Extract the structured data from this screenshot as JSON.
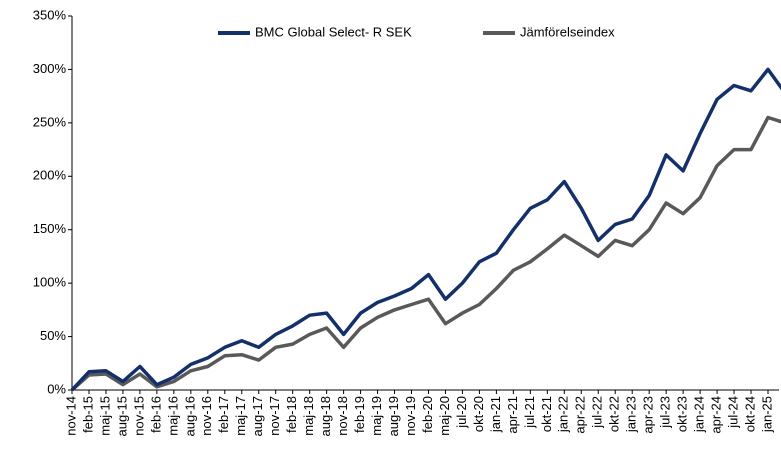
{
  "chart_data": {
    "type": "line",
    "categories": [
      "nov-14",
      "feb-15",
      "maj-15",
      "aug-15",
      "nov-15",
      "feb-16",
      "maj-16",
      "aug-16",
      "nov-16",
      "feb-17",
      "maj-17",
      "aug-17",
      "nov-17",
      "feb-18",
      "maj-18",
      "aug-18",
      "nov-18",
      "feb-19",
      "maj-19",
      "aug-19",
      "nov-19",
      "feb-20",
      "maj-20",
      "jul-20",
      "okt-20",
      "jan-21",
      "apr-21",
      "jul-21",
      "okt-21",
      "jan-22",
      "apr-22",
      "jul-22",
      "okt-22",
      "jan-23",
      "apr-23",
      "jul-23",
      "okt-23",
      "jan-24",
      "apr-24",
      "jul-24",
      "okt-24",
      "jan-25",
      null
    ],
    "series": [
      {
        "name": "BMC Global Select- R SEK",
        "color": "#14306b",
        "values": [
          0,
          17,
          18,
          8,
          22,
          5,
          12,
          24,
          30,
          40,
          46,
          40,
          52,
          60,
          70,
          72,
          52,
          72,
          82,
          88,
          95,
          108,
          85,
          100,
          120,
          128,
          150,
          170,
          178,
          195,
          170,
          140,
          155,
          160,
          182,
          220,
          205,
          240,
          272,
          285,
          280,
          300,
          278
        ]
      },
      {
        "name": "Jämförelseindex",
        "color": "#595959",
        "values": [
          0,
          14,
          15,
          5,
          15,
          3,
          8,
          18,
          22,
          32,
          33,
          28,
          40,
          43,
          52,
          58,
          40,
          58,
          68,
          75,
          80,
          85,
          62,
          72,
          80,
          95,
          112,
          120,
          132,
          145,
          135,
          125,
          140,
          135,
          150,
          175,
          165,
          180,
          210,
          225,
          225,
          255,
          250
        ]
      }
    ],
    "ylim": [
      0,
      350
    ],
    "yticks": [
      {
        "value": 0,
        "label": "0%"
      },
      {
        "value": 50,
        "label": "50%"
      },
      {
        "value": 100,
        "label": "100%"
      },
      {
        "value": 150,
        "label": "150%"
      },
      {
        "value": 200,
        "label": "200%"
      },
      {
        "value": 250,
        "label": "250%"
      },
      {
        "value": 300,
        "label": "300%"
      },
      {
        "value": 350,
        "label": "350%"
      }
    ],
    "grid": false,
    "legend": "top"
  }
}
